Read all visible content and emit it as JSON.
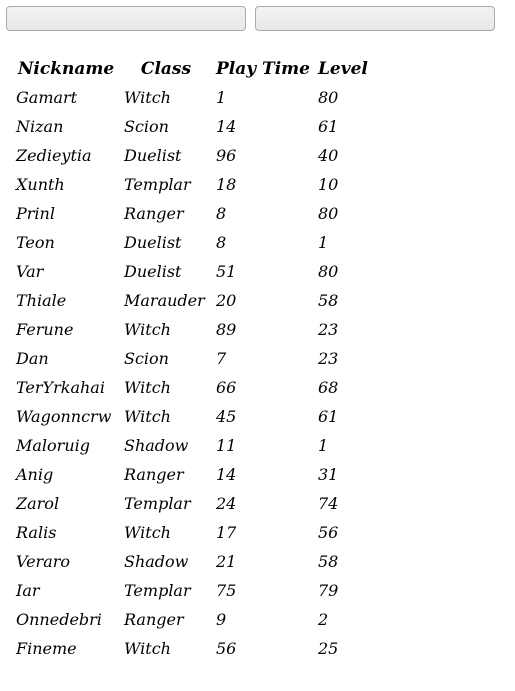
{
  "filters": {
    "first_value": "",
    "second_value": ""
  },
  "table": {
    "headers": {
      "nickname": "Nickname",
      "class": "Class",
      "play_time": "Play Time",
      "level": "Level"
    },
    "rows": [
      {
        "nickname": "Gamart",
        "class": "Witch",
        "play_time": "1",
        "level": "80"
      },
      {
        "nickname": "Nizan",
        "class": "Scion",
        "play_time": "14",
        "level": "61"
      },
      {
        "nickname": "Zedieytia",
        "class": "Duelist",
        "play_time": "96",
        "level": "40"
      },
      {
        "nickname": "Xunth",
        "class": "Templar",
        "play_time": "18",
        "level": "10"
      },
      {
        "nickname": "Prinl",
        "class": "Ranger",
        "play_time": "8",
        "level": "80"
      },
      {
        "nickname": "Teon",
        "class": "Duelist",
        "play_time": "8",
        "level": "1"
      },
      {
        "nickname": "Var",
        "class": "Duelist",
        "play_time": "51",
        "level": "80"
      },
      {
        "nickname": "Thiale",
        "class": "Marauder",
        "play_time": "20",
        "level": "58"
      },
      {
        "nickname": "Ferune",
        "class": "Witch",
        "play_time": "89",
        "level": "23"
      },
      {
        "nickname": "Dan",
        "class": "Scion",
        "play_time": "7",
        "level": "23"
      },
      {
        "nickname": "TerYrkahai",
        "class": "Witch",
        "play_time": "66",
        "level": "68"
      },
      {
        "nickname": "Wagonncrw",
        "class": "Witch",
        "play_time": "45",
        "level": "61"
      },
      {
        "nickname": "Maloruig",
        "class": "Shadow",
        "play_time": "11",
        "level": "1"
      },
      {
        "nickname": "Anig",
        "class": "Ranger",
        "play_time": "14",
        "level": "31"
      },
      {
        "nickname": "Zarol",
        "class": "Templar",
        "play_time": "24",
        "level": "74"
      },
      {
        "nickname": "Ralis",
        "class": "Witch",
        "play_time": "17",
        "level": "56"
      },
      {
        "nickname": "Veraro",
        "class": "Shadow",
        "play_time": "21",
        "level": "58"
      },
      {
        "nickname": "Iar",
        "class": "Templar",
        "play_time": "75",
        "level": "79"
      },
      {
        "nickname": "Onnedebri",
        "class": "Ranger",
        "play_time": "9",
        "level": "2"
      },
      {
        "nickname": "Fineme",
        "class": "Witch",
        "play_time": "56",
        "level": "25"
      }
    ]
  }
}
